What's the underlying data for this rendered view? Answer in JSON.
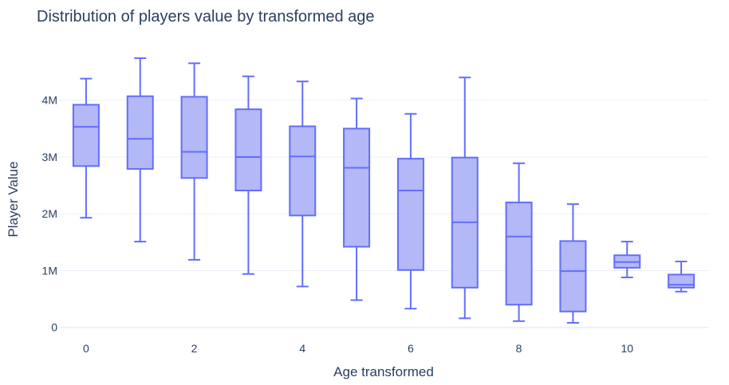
{
  "chart_data": {
    "type": "box",
    "title": "Distribution of players value by transformed age",
    "xlabel": "Age transformed",
    "ylabel": "Player Value",
    "x_ticks": [
      0,
      2,
      4,
      6,
      8,
      10
    ],
    "y_ticks": [
      {
        "value": 0,
        "label": "0"
      },
      {
        "value": 1000000,
        "label": "1M"
      },
      {
        "value": 2000000,
        "label": "2M"
      },
      {
        "value": 3000000,
        "label": "3M"
      },
      {
        "value": 4000000,
        "label": "4M"
      }
    ],
    "xlim": [
      -0.5,
      11.5
    ],
    "ylim": [
      -60000,
      4950000
    ],
    "grid": true,
    "colors": {
      "fill": "#b3b8f6",
      "line": "#636efa",
      "grid": "#ebf0f8",
      "text": "#2a3f5f"
    },
    "boxes": [
      {
        "x": 0,
        "min": 1930000,
        "q1": 2840000,
        "median": 3530000,
        "q3": 3920000,
        "max": 4380000
      },
      {
        "x": 1,
        "min": 1510000,
        "q1": 2790000,
        "median": 3320000,
        "q3": 4070000,
        "max": 4740000
      },
      {
        "x": 2,
        "min": 1190000,
        "q1": 2630000,
        "median": 3090000,
        "q3": 4060000,
        "max": 4650000
      },
      {
        "x": 3,
        "min": 940000,
        "q1": 2410000,
        "median": 3000000,
        "q3": 3840000,
        "max": 4420000
      },
      {
        "x": 4,
        "min": 720000,
        "q1": 1970000,
        "median": 3010000,
        "q3": 3540000,
        "max": 4330000
      },
      {
        "x": 5,
        "min": 480000,
        "q1": 1420000,
        "median": 2810000,
        "q3": 3500000,
        "max": 4030000
      },
      {
        "x": 6,
        "min": 330000,
        "q1": 1010000,
        "median": 2410000,
        "q3": 2970000,
        "max": 3760000
      },
      {
        "x": 7,
        "min": 160000,
        "q1": 700000,
        "median": 1850000,
        "q3": 2990000,
        "max": 4400000
      },
      {
        "x": 8,
        "min": 110000,
        "q1": 400000,
        "median": 1600000,
        "q3": 2200000,
        "max": 2890000
      },
      {
        "x": 9,
        "min": 80000,
        "q1": 280000,
        "median": 990000,
        "q3": 1520000,
        "max": 2170000
      },
      {
        "x": 10,
        "min": 880000,
        "q1": 1050000,
        "median": 1150000,
        "q3": 1270000,
        "max": 1510000
      },
      {
        "x": 11,
        "min": 630000,
        "q1": 700000,
        "median": 750000,
        "q3": 930000,
        "max": 1160000
      }
    ]
  }
}
